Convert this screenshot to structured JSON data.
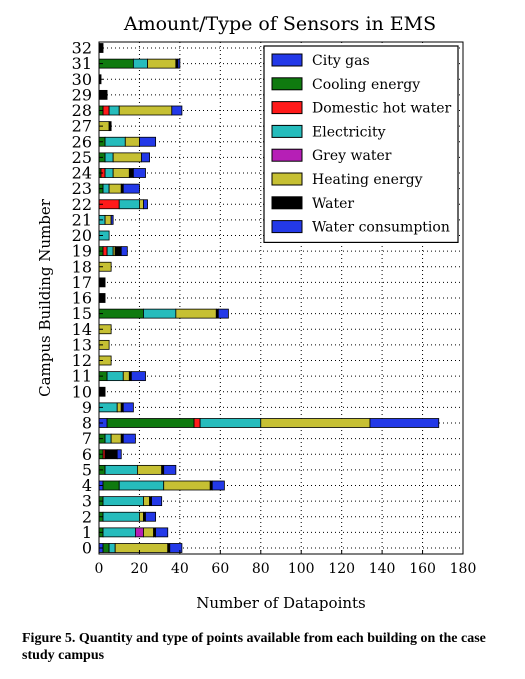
{
  "chart_data": {
    "type": "bar",
    "orientation": "horizontal",
    "stacked": true,
    "title": "Amount/Type of Sensors in EMS",
    "xlabel": "Number of Datapoints",
    "ylabel": "Campus Building Number",
    "xlim": [
      0,
      180
    ],
    "x_ticks": [
      "0",
      "20",
      "40",
      "60",
      "80",
      "100",
      "120",
      "140",
      "160",
      "180"
    ],
    "grid": true,
    "legend_position": "top-right",
    "categories": [
      "0",
      "1",
      "2",
      "3",
      "4",
      "5",
      "6",
      "7",
      "8",
      "9",
      "10",
      "11",
      "12",
      "13",
      "14",
      "15",
      "16",
      "17",
      "18",
      "19",
      "20",
      "21",
      "22",
      "23",
      "24",
      "25",
      "26",
      "27",
      "28",
      "29",
      "30",
      "31",
      "32"
    ],
    "series": [
      {
        "name": "City gas",
        "color": "#2339e8",
        "values": [
          2,
          0,
          0,
          0,
          2,
          0,
          0,
          0,
          4,
          0,
          0,
          0,
          0,
          0,
          0,
          0,
          0,
          0,
          0,
          0,
          0,
          0,
          0,
          0,
          0,
          0,
          0,
          0,
          0,
          0,
          0,
          0,
          0
        ]
      },
      {
        "name": "Cooling energy",
        "color": "#0f7a0f",
        "values": [
          3,
          2,
          2,
          2,
          8,
          3,
          2,
          3,
          43,
          0,
          0,
          4,
          0,
          0,
          0,
          22,
          0,
          0,
          0,
          2,
          0,
          0,
          0,
          2,
          1,
          3,
          3,
          0,
          2,
          0,
          0,
          17,
          0
        ]
      },
      {
        "name": "Domestic hot water",
        "color": "#ff1a1a",
        "values": [
          0,
          0,
          0,
          0,
          0,
          0,
          1,
          0,
          3,
          0,
          0,
          0,
          0,
          0,
          0,
          0,
          0,
          0,
          0,
          2,
          0,
          0,
          10,
          0,
          2,
          0,
          0,
          0,
          3,
          0,
          0,
          0,
          0
        ]
      },
      {
        "name": "Electricity",
        "color": "#26bcbc",
        "values": [
          3,
          16,
          18,
          20,
          22,
          16,
          0,
          3,
          30,
          9,
          0,
          8,
          0,
          0,
          0,
          16,
          0,
          0,
          0,
          3,
          5,
          3,
          10,
          3,
          4,
          4,
          10,
          0,
          5,
          0,
          0,
          7,
          0
        ]
      },
      {
        "name": "Grey water",
        "color": "#b61fb6",
        "values": [
          0,
          4,
          0,
          0,
          0,
          0,
          0,
          0,
          0,
          0,
          0,
          0,
          0,
          0,
          0,
          0,
          0,
          0,
          0,
          0,
          0,
          0,
          0,
          0,
          0,
          0,
          0,
          0,
          0,
          0,
          0,
          0,
          0
        ]
      },
      {
        "name": "Heating energy",
        "color": "#c6c033",
        "values": [
          26,
          5,
          2,
          3,
          23,
          12,
          0,
          5,
          54,
          2,
          0,
          3,
          6,
          5,
          6,
          20,
          0,
          0,
          6,
          1,
          0,
          3,
          2,
          6,
          8,
          14,
          7,
          5,
          26,
          0,
          0,
          14,
          0
        ]
      },
      {
        "name": "Water",
        "color": "#000000",
        "values": [
          1,
          1,
          1,
          1,
          1,
          1,
          6,
          1,
          0,
          1,
          3,
          1,
          0,
          0,
          0,
          1,
          3,
          3,
          0,
          3,
          0,
          0,
          0,
          1,
          2,
          0,
          0,
          1,
          0,
          4,
          1,
          1,
          2
        ]
      },
      {
        "name": "Water consumption",
        "color": "#2339e8",
        "values": [
          6,
          6,
          5,
          5,
          6,
          6,
          2,
          6,
          34,
          5,
          0,
          7,
          0,
          0,
          0,
          5,
          0,
          0,
          0,
          3,
          0,
          1,
          2,
          8,
          6,
          4,
          8,
          0,
          5,
          0,
          0,
          1,
          0
        ]
      }
    ]
  },
  "caption": "Figure 5.  Quantity and type of points available from each building on the case study campus"
}
